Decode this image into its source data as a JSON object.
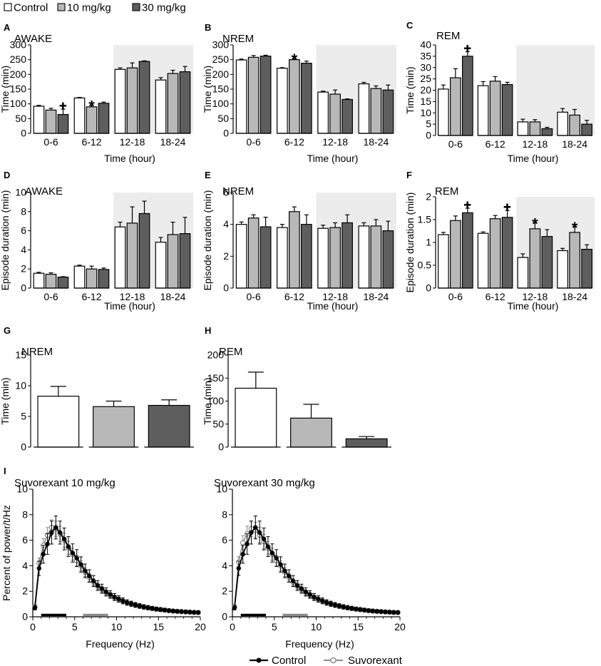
{
  "legend_top": {
    "items": [
      {
        "label": "Control",
        "color": "#ffffff"
      },
      {
        "label": "10 mg/kg",
        "color": "#b8b8b8"
      },
      {
        "label": "30 mg/kg",
        "color": "#5e5e5e"
      }
    ]
  },
  "legend_bottom": {
    "items": [
      {
        "label": "Control",
        "color": "#000000"
      },
      {
        "label": "Suvorexant",
        "color": "#8c8c8c"
      }
    ]
  },
  "chart_data": [
    {
      "id": "A",
      "type": "bar",
      "title": "AWAKE",
      "xlabel": "Time (hour)",
      "ylabel": "Time (min)",
      "ylim": [
        0,
        300
      ],
      "yticks": [
        0,
        50,
        100,
        150,
        200,
        250,
        300
      ],
      "categories": [
        "0-6",
        "6-12",
        "12-18",
        "18-24"
      ],
      "dark_period": [
        2,
        3
      ],
      "series": [
        {
          "name": "Control",
          "values": [
            92,
            120,
            217,
            181
          ],
          "errors": [
            3,
            2,
            5,
            8
          ]
        },
        {
          "name": "10 mg/kg",
          "values": [
            79,
            90,
            222,
            203
          ],
          "errors": [
            6,
            5,
            17,
            11
          ]
        },
        {
          "name": "30 mg/kg",
          "values": [
            64,
            102,
            244,
            209
          ],
          "errors": [
            18,
            4,
            2,
            18
          ]
        }
      ],
      "annotations": [
        {
          "category": 0,
          "series": 2,
          "symbol": "✚"
        },
        {
          "category": 1,
          "series": 1,
          "symbol": "*"
        }
      ]
    },
    {
      "id": "B",
      "type": "bar",
      "title": "NREM",
      "xlabel": "Time (hour)",
      "ylabel": "Time (min)",
      "ylim": [
        0,
        300
      ],
      "yticks": [
        0,
        50,
        100,
        150,
        200,
        250,
        300
      ],
      "categories": [
        "0-6",
        "6-12",
        "12-18",
        "18-24"
      ],
      "dark_period": [
        2,
        3
      ],
      "series": [
        {
          "name": "Control",
          "values": [
            249,
            221,
            140,
            168
          ],
          "errors": [
            3,
            2,
            3,
            5
          ]
        },
        {
          "name": "10 mg/kg",
          "values": [
            258,
            250,
            133,
            152
          ],
          "errors": [
            6,
            4,
            14,
            9
          ]
        },
        {
          "name": "30 mg/kg",
          "values": [
            262,
            238,
            115,
            147
          ],
          "errors": [
            3,
            7,
            2,
            17
          ]
        }
      ],
      "annotations": [
        {
          "category": 1,
          "series": 1,
          "symbol": "*"
        }
      ]
    },
    {
      "id": "C",
      "type": "bar",
      "title": "REM",
      "xlabel": "Time (hour)",
      "ylabel": "Time (min)",
      "ylim": [
        0,
        40
      ],
      "yticks": [
        0,
        5,
        10,
        15,
        20,
        25,
        30,
        35,
        40
      ],
      "categories": [
        "0-6",
        "6-12",
        "12-18",
        "18-24"
      ],
      "dark_period": [
        2,
        3
      ],
      "series": [
        {
          "name": "Control",
          "values": [
            20.5,
            22,
            6,
            10.3
          ],
          "errors": [
            1.8,
            1.8,
            1.2,
            1.6
          ]
        },
        {
          "name": "10 mg/kg",
          "values": [
            25.5,
            24,
            6,
            9
          ],
          "errors": [
            4,
            2,
            1,
            2.5
          ]
        },
        {
          "name": "30 mg/kg",
          "values": [
            35,
            22.5,
            3,
            5
          ],
          "errors": [
            2,
            1,
            0.6,
            1.7
          ]
        }
      ],
      "annotations": [
        {
          "category": 0,
          "series": 2,
          "symbol": "✚"
        }
      ]
    },
    {
      "id": "D",
      "type": "bar",
      "title": "AWAKE",
      "xlabel": "Time (hour)",
      "ylabel": "Episode duration (min)",
      "ylim": [
        0,
        10
      ],
      "yticks": [
        0,
        2,
        4,
        6,
        8,
        10
      ],
      "categories": [
        "0-6",
        "6-12",
        "12-18",
        "18-24"
      ],
      "dark_period": [
        2,
        3
      ],
      "series": [
        {
          "name": "Control",
          "values": [
            1.55,
            2.3,
            6.4,
            4.8
          ],
          "errors": [
            0.1,
            0.1,
            0.5,
            0.5
          ]
        },
        {
          "name": "10 mg/kg",
          "values": [
            1.45,
            2.0,
            6.8,
            5.6
          ],
          "errors": [
            0.15,
            0.3,
            1.7,
            1.3
          ]
        },
        {
          "name": "30 mg/kg",
          "values": [
            1.15,
            1.95,
            7.8,
            5.7
          ],
          "errors": [
            0.05,
            0.15,
            1.3,
            1.7
          ]
        }
      ],
      "annotations": []
    },
    {
      "id": "E",
      "type": "bar",
      "title": "NREM",
      "xlabel": "Time (hour)",
      "ylabel": "Episode duration (min)",
      "ylim": [
        0,
        6
      ],
      "yticks": [
        0,
        2,
        4,
        6
      ],
      "categories": [
        "0-6",
        "6-12",
        "12-18",
        "18-24"
      ],
      "dark_period": [
        2,
        3
      ],
      "series": [
        {
          "name": "Control",
          "values": [
            4.0,
            3.8,
            3.75,
            3.9
          ],
          "errors": [
            0.15,
            0.2,
            0.2,
            0.2
          ]
        },
        {
          "name": "10 mg/kg",
          "values": [
            4.4,
            4.8,
            3.8,
            3.9
          ],
          "errors": [
            0.2,
            0.3,
            0.3,
            0.4
          ]
        },
        {
          "name": "30 mg/kg",
          "values": [
            3.85,
            4.0,
            4.1,
            3.6
          ],
          "errors": [
            0.6,
            0.6,
            0.5,
            0.6
          ]
        }
      ],
      "annotations": []
    },
    {
      "id": "F",
      "type": "bar",
      "title": "REM",
      "xlabel": "Time (hour)",
      "ylabel": "Episode duration (min)",
      "ylim": [
        0,
        2
      ],
      "yticks": [
        0,
        0.5,
        1,
        1.5,
        2
      ],
      "categories": [
        "0-6",
        "6-12",
        "12-18",
        "18-24"
      ],
      "dark_period": [
        2,
        3
      ],
      "series": [
        {
          "name": "Control",
          "values": [
            1.17,
            1.2,
            0.67,
            0.82
          ],
          "errors": [
            0.05,
            0.03,
            0.08,
            0.05
          ]
        },
        {
          "name": "10 mg/kg",
          "values": [
            1.48,
            1.52,
            1.3,
            1.22
          ],
          "errors": [
            0.1,
            0.07,
            0.13,
            0.12
          ]
        },
        {
          "name": "30 mg/kg",
          "values": [
            1.65,
            1.55,
            1.13,
            0.85
          ],
          "errors": [
            0.1,
            0.15,
            0.15,
            0.1
          ]
        }
      ],
      "annotations": [
        {
          "category": 0,
          "series": 2,
          "symbol": "✚"
        },
        {
          "category": 1,
          "series": 2,
          "symbol": "✚"
        },
        {
          "category": 2,
          "series": 1,
          "symbol": "*"
        },
        {
          "category": 3,
          "series": 1,
          "symbol": "*"
        }
      ]
    },
    {
      "id": "G",
      "type": "bar",
      "title": "NREM",
      "xlabel": "",
      "ylabel": "Time (min)",
      "ylim": [
        0,
        15
      ],
      "yticks": [
        0,
        5,
        10,
        15
      ],
      "series": [
        {
          "name": "Control",
          "values": [
            8.3
          ],
          "errors": [
            1.6
          ]
        },
        {
          "name": "10 mg/kg",
          "values": [
            6.6
          ],
          "errors": [
            0.9
          ]
        },
        {
          "name": "30 mg/kg",
          "values": [
            6.8
          ],
          "errors": [
            0.9
          ]
        }
      ]
    },
    {
      "id": "H",
      "type": "bar",
      "title": "REM",
      "xlabel": "",
      "ylabel": "Time (min)",
      "ylim": [
        0,
        200
      ],
      "yticks": [
        0,
        50,
        100,
        150,
        200
      ],
      "series": [
        {
          "name": "Control",
          "values": [
            128
          ],
          "errors": [
            35
          ]
        },
        {
          "name": "10 mg/kg",
          "values": [
            63
          ],
          "errors": [
            30
          ]
        },
        {
          "name": "30 mg/kg",
          "values": [
            18
          ],
          "errors": [
            5
          ]
        }
      ]
    },
    {
      "id": "I1",
      "type": "line",
      "title": "Suvorexant 10 mg/kg",
      "xlabel": "Frequency (Hz)",
      "ylabel": "Percent of power/t/Hz",
      "xlim": [
        0,
        20
      ],
      "ylim": [
        0,
        10
      ],
      "xticks": [
        0,
        5,
        10,
        15,
        20
      ],
      "yticks": [
        0,
        2,
        4,
        6,
        8,
        10
      ],
      "x": [
        0.25,
        0.75,
        1.25,
        1.75,
        2.25,
        2.75,
        3.25,
        3.75,
        4.25,
        4.75,
        5.25,
        5.75,
        6.25,
        6.75,
        7.25,
        7.75,
        8.25,
        8.75,
        9.25,
        9.75,
        10.25,
        10.75,
        11.25,
        11.75,
        12.25,
        12.75,
        13.25,
        13.75,
        14.25,
        14.75,
        15.25,
        15.75,
        16.25,
        16.75,
        17.25,
        17.75,
        18.25,
        18.75,
        19.25,
        19.75
      ],
      "series": [
        {
          "name": "Control",
          "values": [
            0.7,
            3.8,
            4.9,
            5.7,
            6.6,
            7.0,
            6.6,
            6.1,
            5.5,
            5.0,
            4.6,
            4.1,
            3.6,
            3.2,
            2.8,
            2.45,
            2.2,
            1.95,
            1.75,
            1.55,
            1.4,
            1.25,
            1.12,
            1.02,
            0.93,
            0.85,
            0.78,
            0.72,
            0.66,
            0.61,
            0.57,
            0.53,
            0.49,
            0.46,
            0.43,
            0.41,
            0.39,
            0.37,
            0.35,
            0.34
          ],
          "error": 0.9
        },
        {
          "name": "Suvorexant",
          "values": [
            0.8,
            4.2,
            5.6,
            6.4,
            7.0,
            6.9,
            6.5,
            6.0,
            5.4,
            4.9,
            4.4,
            4.0,
            3.5,
            3.1,
            2.7,
            2.4,
            2.15,
            1.9,
            1.7,
            1.5,
            1.36,
            1.22,
            1.1,
            1.0,
            0.91,
            0.83,
            0.76,
            0.7,
            0.65,
            0.6,
            0.56,
            0.52,
            0.48,
            0.45,
            0.42,
            0.4,
            0.38,
            0.36,
            0.34,
            0.33
          ],
          "error": 0.6
        }
      ],
      "bands": [
        {
          "x0": 1,
          "x1": 4,
          "color": "#000000"
        },
        {
          "x0": 6,
          "x1": 9,
          "color": "#8c8c8c"
        }
      ]
    },
    {
      "id": "I2",
      "type": "line",
      "title": "Suvorexant 30 mg/kg",
      "xlabel": "Frequency (Hz)",
      "ylabel": "",
      "xlim": [
        0,
        20
      ],
      "ylim": [
        0,
        10
      ],
      "xticks": [
        0,
        5,
        10,
        15,
        20
      ],
      "yticks": [
        0,
        2,
        4,
        6,
        8,
        10
      ],
      "x": [
        0.25,
        0.75,
        1.25,
        1.75,
        2.25,
        2.75,
        3.25,
        3.75,
        4.25,
        4.75,
        5.25,
        5.75,
        6.25,
        6.75,
        7.25,
        7.75,
        8.25,
        8.75,
        9.25,
        9.75,
        10.25,
        10.75,
        11.25,
        11.75,
        12.25,
        12.75,
        13.25,
        13.75,
        14.25,
        14.75,
        15.25,
        15.75,
        16.25,
        16.75,
        17.25,
        17.75,
        18.25,
        18.75,
        19.25,
        19.75
      ],
      "series": [
        {
          "name": "Control",
          "values": [
            0.7,
            3.8,
            4.9,
            5.7,
            6.6,
            7.0,
            6.6,
            6.1,
            5.5,
            5.0,
            4.6,
            4.1,
            3.6,
            3.2,
            2.8,
            2.45,
            2.2,
            1.95,
            1.75,
            1.55,
            1.4,
            1.25,
            1.12,
            1.02,
            0.93,
            0.85,
            0.78,
            0.72,
            0.66,
            0.61,
            0.57,
            0.53,
            0.49,
            0.46,
            0.43,
            0.41,
            0.39,
            0.37,
            0.35,
            0.34
          ],
          "error": 0.9
        },
        {
          "name": "Suvorexant",
          "values": [
            0.8,
            4.3,
            5.8,
            6.5,
            6.9,
            6.8,
            6.4,
            5.9,
            5.4,
            4.9,
            4.4,
            4.0,
            3.5,
            3.1,
            2.7,
            2.4,
            2.15,
            1.9,
            1.7,
            1.5,
            1.36,
            1.22,
            1.1,
            1.0,
            0.91,
            0.83,
            0.76,
            0.7,
            0.65,
            0.6,
            0.56,
            0.52,
            0.48,
            0.45,
            0.42,
            0.4,
            0.38,
            0.36,
            0.34,
            0.33
          ],
          "error": 0.6
        }
      ],
      "bands": [
        {
          "x0": 1,
          "x1": 4,
          "color": "#000000"
        },
        {
          "x0": 6,
          "x1": 9,
          "color": "#8c8c8c"
        }
      ]
    }
  ]
}
